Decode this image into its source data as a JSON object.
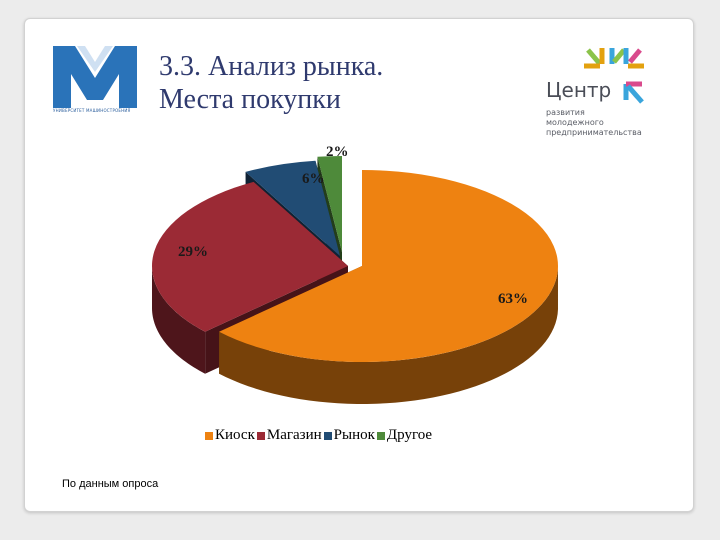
{
  "slide": {
    "title_line1": "3.3. Анализ рынка.",
    "title_line2": "Места покупки",
    "source_note": "По данным опроса"
  },
  "logos": {
    "left_logo_caption": "УНИВЕРСИТЕТ МАШИНОСТРОЕНИЯ",
    "right_logo_name": "Центр",
    "right_logo_sub_lines": [
      "развития",
      "молодежного",
      "предпринимательства"
    ]
  },
  "colors": {
    "kiosk": "#ee8211",
    "shop": "#9b2a35",
    "market": "#214c74",
    "other": "#4e8a3a",
    "title": "#2f3a6e",
    "brand_blue": "#2a73b9"
  },
  "chart_data": {
    "type": "pie",
    "style": "3d-exploded",
    "labels": [
      "Киоск",
      "Магазин",
      "Рынок",
      "Другое"
    ],
    "values": [
      63,
      29,
      6,
      2
    ],
    "data_labels": [
      "63%",
      "29%",
      "6%",
      "2%"
    ],
    "legend_position": "bottom"
  }
}
